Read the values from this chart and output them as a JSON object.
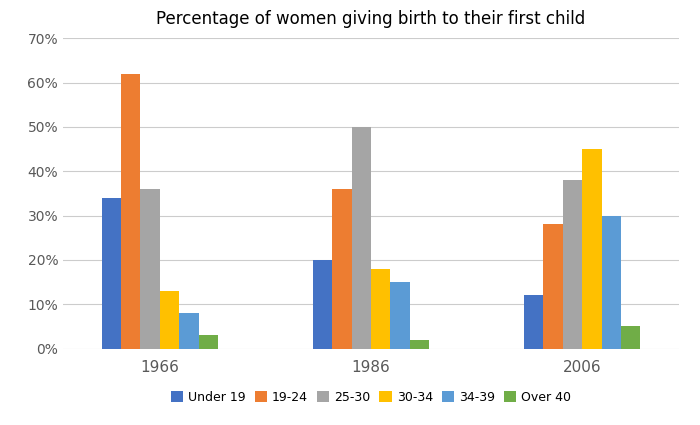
{
  "title": "Percentage of women giving birth to their first child",
  "years": [
    "1966",
    "1986",
    "2006"
  ],
  "categories": [
    "Under 19",
    "19-24",
    "25-30",
    "30-34",
    "34-39",
    "Over 40"
  ],
  "values": {
    "Under 19": [
      34,
      20,
      12
    ],
    "19-24": [
      62,
      36,
      28
    ],
    "25-30": [
      36,
      50,
      38
    ],
    "30-34": [
      13,
      18,
      45
    ],
    "34-39": [
      8,
      15,
      30
    ],
    "Over 40": [
      3,
      2,
      5
    ]
  },
  "colors": {
    "Under 19": "#4472C4",
    "19-24": "#ED7D31",
    "25-30": "#A5A5A5",
    "30-34": "#FFC000",
    "34-39": "#5B9BD5",
    "Over 40": "#70AD47"
  },
  "ylim": [
    0,
    70
  ],
  "yticks": [
    0,
    10,
    20,
    30,
    40,
    50,
    60,
    70
  ],
  "ytick_labels": [
    "0%",
    "10%",
    "20%",
    "30%",
    "40%",
    "50%",
    "60%",
    "70%"
  ],
  "bar_width": 0.11,
  "background_color": "#FFFFFF",
  "grid_color": "#CCCCCC",
  "title_fontsize": 12
}
